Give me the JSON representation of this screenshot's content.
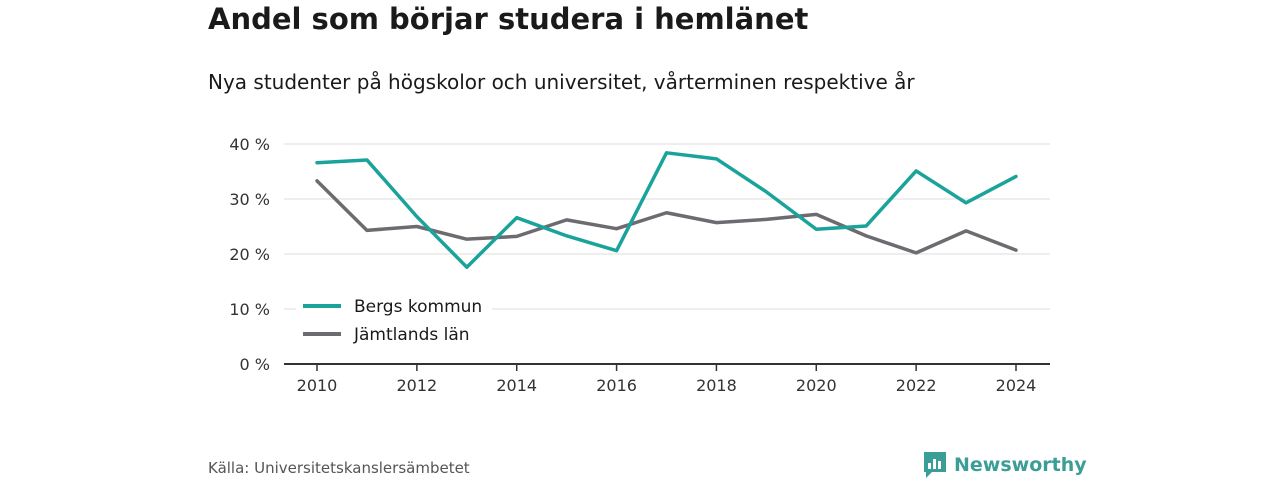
{
  "title": "Andel som börjar studera i hemlänet",
  "subtitle": "Nya studenter på högskolor och universitet, vårterminen respektive år",
  "source": "Källa: Universitetskanslersämbetet",
  "brand": {
    "name": "Newsworthy",
    "icon": "newsworthy-logo-icon",
    "color": "#3a9e96"
  },
  "chart_data": {
    "type": "line",
    "x": [
      2010,
      2011,
      2012,
      2013,
      2014,
      2015,
      2016,
      2017,
      2018,
      2019,
      2020,
      2021,
      2022,
      2023,
      2024
    ],
    "series": [
      {
        "name": "Bergs kommun",
        "color": "#1aa39a",
        "values": [
          36.6,
          37.1,
          26.8,
          17.6,
          26.6,
          23.3,
          20.6,
          38.4,
          37.3,
          31.3,
          24.5,
          25.1,
          35.1,
          29.3,
          34.1
        ]
      },
      {
        "name": "Jämtlands län",
        "color": "#6d6b70",
        "values": [
          33.3,
          24.3,
          25.0,
          22.7,
          23.2,
          26.2,
          24.6,
          27.5,
          25.7,
          26.3,
          27.2,
          23.3,
          20.2,
          24.2,
          20.7
        ]
      }
    ],
    "xticks": [
      "2010",
      "2012",
      "2014",
      "2016",
      "2018",
      "2020",
      "2022",
      "2024"
    ],
    "yticks": [
      "0 %",
      "10 %",
      "20 %",
      "30 %",
      "40 %"
    ],
    "ylim": [
      0,
      40
    ],
    "grid": true,
    "legend_position": "bottom-left"
  }
}
